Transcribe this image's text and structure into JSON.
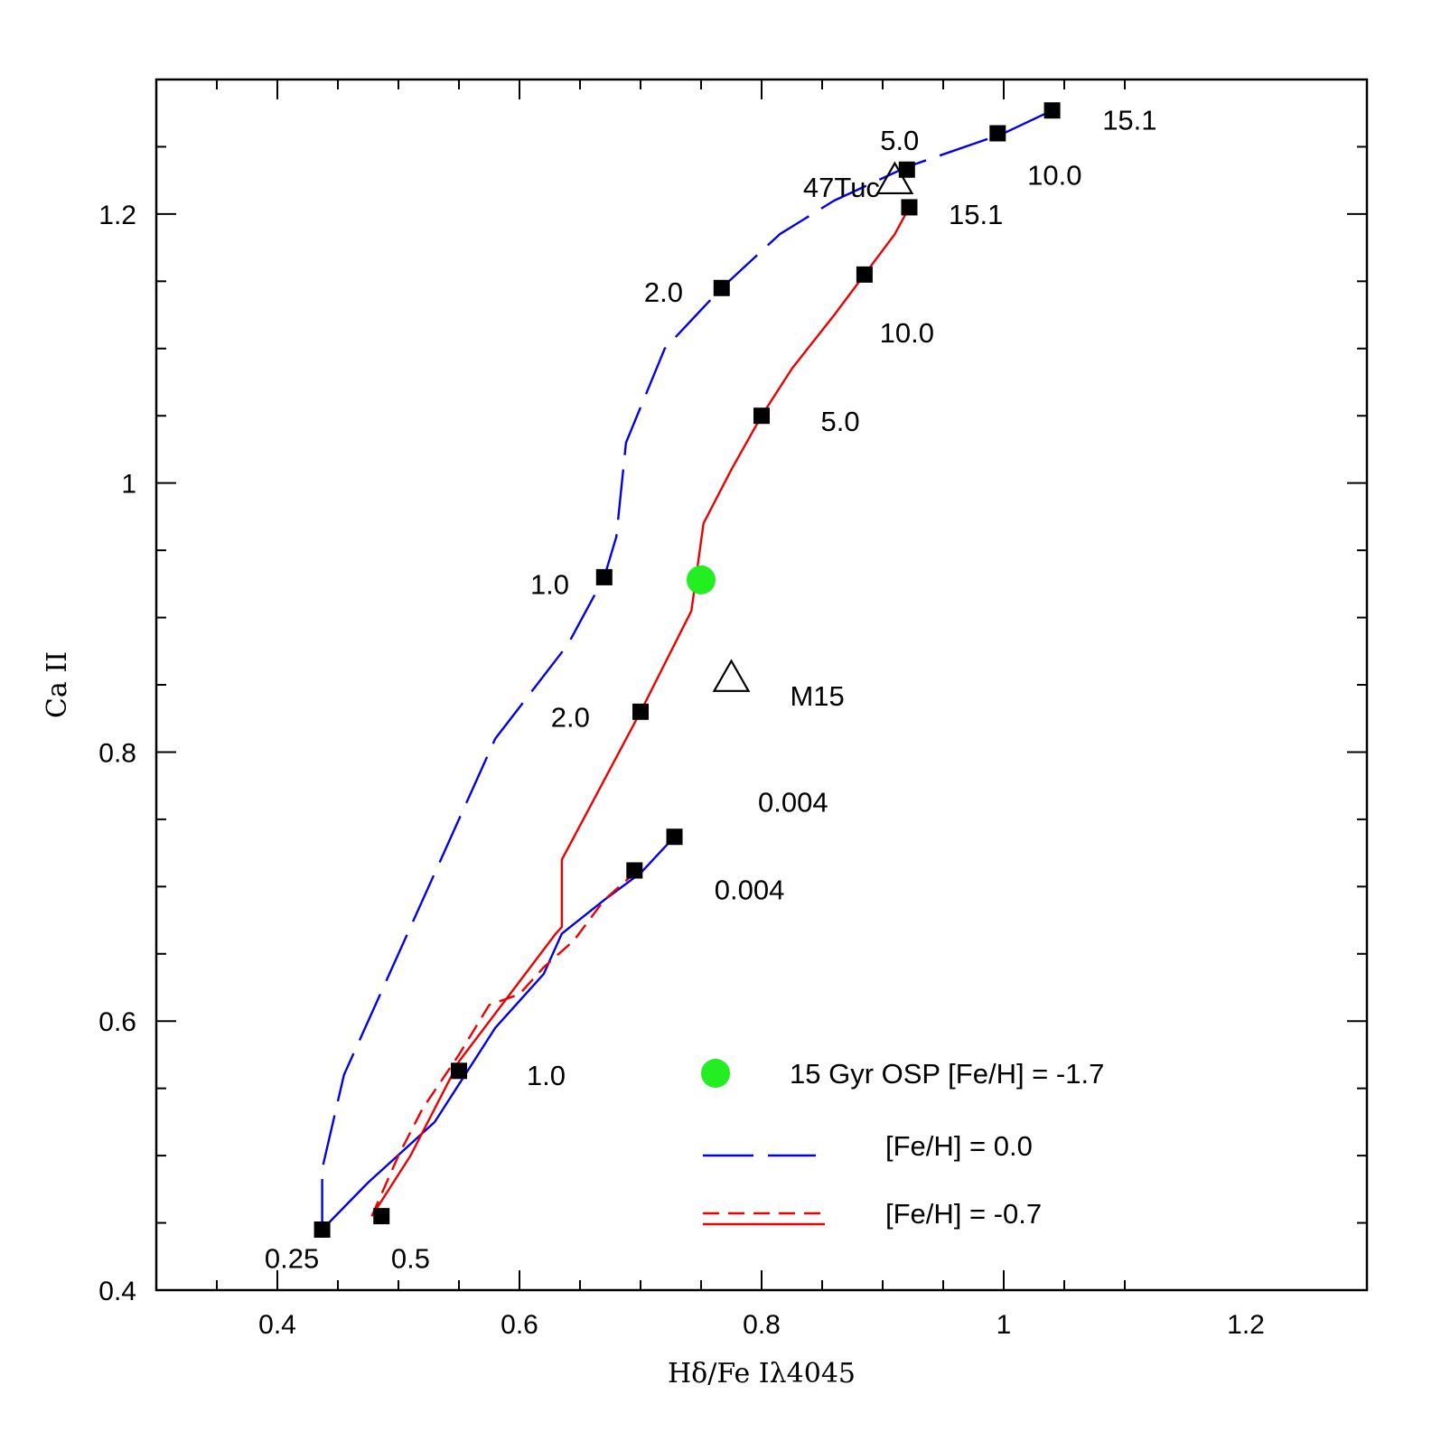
{
  "chart_data": {
    "type": "line",
    "title": "",
    "xlabel": "Hδ/Fe Iλ4045",
    "ylabel": "Ca II",
    "xlim": [
      0.3,
      1.3
    ],
    "ylim": [
      0.4,
      1.3
    ],
    "x_ticks": [
      0.4,
      0.6,
      0.8,
      1.0,
      1.2
    ],
    "x_tick_labels": [
      "0.4",
      "0.6",
      "0.8",
      "1",
      "1.2"
    ],
    "y_ticks": [
      0.4,
      0.6,
      0.8,
      1.0,
      1.2
    ],
    "y_tick_labels": [
      "0.4",
      "0.6",
      "0.8",
      "1",
      "1.2"
    ],
    "series": [
      {
        "name": "[Fe/H] =  0.0 upper branch",
        "color": "#0000ee",
        "style": "long-dash",
        "x": [
          0.437,
          0.437,
          0.455,
          0.51,
          0.58,
          0.64,
          0.67,
          0.68,
          0.688,
          0.72,
          0.767,
          0.815,
          0.86,
          0.92,
          1.0,
          1.04
        ],
        "y": [
          0.445,
          0.49,
          0.56,
          0.67,
          0.81,
          0.88,
          0.93,
          0.96,
          1.03,
          1.1,
          1.145,
          1.185,
          1.21,
          1.235,
          1.26,
          1.277
        ]
      },
      {
        "name": "[Fe/H] =  0.0 lower branch",
        "color": "#0000ee",
        "style": "solid",
        "x": [
          0.437,
          0.475,
          0.53,
          0.55,
          0.58,
          0.62,
          0.635,
          0.67,
          0.7,
          0.728
        ],
        "y": [
          0.445,
          0.48,
          0.525,
          0.553,
          0.595,
          0.635,
          0.665,
          0.69,
          0.71,
          0.737
        ]
      },
      {
        "name": "[Fe/H] = -0.7 upper branch",
        "color": "#ee0000",
        "style": "solid",
        "x": [
          0.478,
          0.51,
          0.55,
          0.63,
          0.635,
          0.635,
          0.7,
          0.742,
          0.752,
          0.775,
          0.8,
          0.825,
          0.86,
          0.885,
          0.91,
          0.922
        ],
        "y": [
          0.455,
          0.5,
          0.57,
          0.665,
          0.67,
          0.72,
          0.83,
          0.905,
          0.97,
          1.01,
          1.05,
          1.085,
          1.125,
          1.155,
          1.185,
          1.205
        ]
      },
      {
        "name": "[Fe/H] = -0.7 lower branch",
        "color": "#ee0000",
        "style": "short-dash",
        "x": [
          0.478,
          0.5,
          0.52,
          0.55,
          0.575,
          0.6,
          0.62,
          0.645,
          0.67,
          0.695
        ],
        "y": [
          0.455,
          0.5,
          0.535,
          0.575,
          0.612,
          0.62,
          0.64,
          0.66,
          0.69,
          0.71
        ]
      }
    ],
    "markers": [
      {
        "x": 0.437,
        "y": 0.445
      },
      {
        "x": 0.486,
        "y": 0.455
      },
      {
        "x": 0.55,
        "y": 0.563
      },
      {
        "x": 0.695,
        "y": 0.712
      },
      {
        "x": 0.728,
        "y": 0.737
      },
      {
        "x": 0.67,
        "y": 0.93
      },
      {
        "x": 0.767,
        "y": 1.145
      },
      {
        "x": 0.92,
        "y": 1.233
      },
      {
        "x": 0.995,
        "y": 1.26
      },
      {
        "x": 1.04,
        "y": 1.277
      },
      {
        "x": 0.7,
        "y": 0.83
      },
      {
        "x": 0.8,
        "y": 1.05
      },
      {
        "x": 0.885,
        "y": 1.155
      },
      {
        "x": 0.922,
        "y": 1.205
      }
    ],
    "point_labels": [
      {
        "text": "0.25",
        "x": 0.412,
        "y": 0.424
      },
      {
        "text": "0.5",
        "x": 0.51,
        "y": 0.424
      },
      {
        "text": "1.0",
        "x": 0.622,
        "y": 0.56
      },
      {
        "text": "0.004",
        "x": 0.79,
        "y": 0.698
      },
      {
        "text": "0.004",
        "x": 0.826,
        "y": 0.763
      },
      {
        "text": "1.0",
        "x": 0.625,
        "y": 0.925
      },
      {
        "text": "2.0",
        "x": 0.719,
        "y": 1.142
      },
      {
        "text": "5.0",
        "x": 0.914,
        "y": 1.255
      },
      {
        "text": "10.0",
        "x": 1.042,
        "y": 1.229
      },
      {
        "text": "15.1",
        "x": 1.104,
        "y": 1.27
      },
      {
        "text": "2.0",
        "x": 0.642,
        "y": 0.826
      },
      {
        "text": "5.0",
        "x": 0.865,
        "y": 1.046
      },
      {
        "text": "10.0",
        "x": 0.92,
        "y": 1.112
      },
      {
        "text": "15.1",
        "x": 0.977,
        "y": 1.2
      }
    ],
    "objects": [
      {
        "name": "47Tuc",
        "x": 0.91,
        "y": 1.225,
        "marker": "open-triangle",
        "label_x": 0.866,
        "label_y": 1.22
      },
      {
        "name": "M15",
        "x": 0.775,
        "y": 0.855,
        "marker": "open-triangle",
        "label_x": 0.846,
        "label_y": 0.842
      },
      {
        "name": "15 Gyr OSP",
        "x": 0.75,
        "y": 0.928,
        "marker": "filled-circle",
        "color": "#22ee22"
      }
    ],
    "legend": {
      "position": "bottom-right",
      "entries": [
        {
          "label": "15 Gyr OSP [Fe/H] = -1.7",
          "marker": "filled-circle",
          "color": "#22ee22"
        },
        {
          "label": "[Fe/H] =  0.0",
          "line": "long-dash",
          "color": "#0000ee"
        },
        {
          "label": "[Fe/H] = -0.7",
          "line": "short-dash over solid",
          "color": "#ee0000"
        }
      ]
    }
  }
}
